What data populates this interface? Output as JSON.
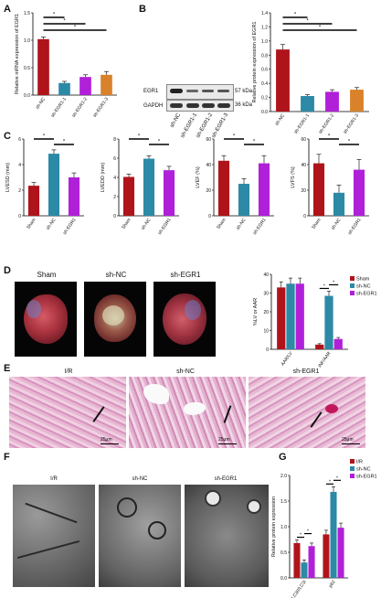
{
  "panels": {
    "A": {
      "label": "A"
    },
    "B": {
      "label": "B"
    },
    "C": {
      "label": "C"
    },
    "D": {
      "label": "D"
    },
    "E": {
      "label": "E"
    },
    "F": {
      "label": "F"
    },
    "G": {
      "label": "G"
    }
  },
  "colors": {
    "red": "#b0141b",
    "teal": "#2c8aa6",
    "purple": "#b020d8",
    "orange": "#d9822b",
    "green": "#2e9a3a",
    "pink": "#e07cc0"
  },
  "blot": {
    "rows": [
      {
        "name": "EGR1",
        "kda": "57 kDa"
      },
      {
        "name": "GAPDH",
        "kda": "36 kDa"
      }
    ],
    "lanes": [
      "sh-NC",
      "sh-EGR1-1",
      "sh-EGR1-2",
      "sh-EGR1-3"
    ]
  },
  "photos_D": [
    "Sham",
    "sh-NC",
    "sh-EGR1"
  ],
  "histo_E": {
    "captions": [
      "I/R",
      "sh-NC",
      "sh-EGR1"
    ],
    "scale": "25μm"
  },
  "tem_F": {
    "captions": [
      "I/R",
      "sh-NC",
      "sh-EGR1"
    ]
  },
  "chart_data": [
    {
      "id": "A",
      "type": "bar",
      "ylabel": "Relative mRNA expression of EGR1",
      "categories": [
        "sh-NC",
        "sh-EGR1-1",
        "sh-EGR1-2",
        "sh-EGR1-3"
      ],
      "values": [
        1.02,
        0.22,
        0.33,
        0.37
      ],
      "errors": [
        0.04,
        0.03,
        0.04,
        0.06
      ],
      "colors": [
        "#b0141b",
        "#2c8aa6",
        "#b020d8",
        "#d9822b"
      ],
      "ylim": [
        0,
        1.5
      ],
      "yticks": [
        0.0,
        0.5,
        1.0,
        1.5
      ],
      "tick_labels": [
        "0.0",
        "0.5",
        "1.0",
        "1.5"
      ],
      "sig": [
        "*",
        "*",
        "*"
      ]
    },
    {
      "id": "B",
      "type": "bar",
      "ylabel": "Relative protein expression of EGR1",
      "categories": [
        "sh-NC",
        "sh-EGR1-1",
        "sh-EGR1-2",
        "sh-EGR1-3"
      ],
      "values": [
        0.88,
        0.22,
        0.28,
        0.31
      ],
      "errors": [
        0.07,
        0.02,
        0.03,
        0.03
      ],
      "colors": [
        "#b0141b",
        "#2c8aa6",
        "#b020d8",
        "#d9822b"
      ],
      "ylim": [
        0,
        1.4
      ],
      "yticks": [
        0.0,
        0.2,
        0.4,
        0.6,
        0.8,
        1.0,
        1.2,
        1.4
      ],
      "tick_labels": [
        "0.0",
        "0.2",
        "0.4",
        "0.6",
        "0.8",
        "1.0",
        "1.2",
        "1.4"
      ],
      "sig": [
        "*",
        "*",
        "*"
      ]
    },
    {
      "id": "C1",
      "type": "bar",
      "ylabel": "LVESD (mm)",
      "categories": [
        "Sham",
        "sh-NC",
        "sh-EGR1"
      ],
      "values": [
        2.35,
        4.85,
        3.0
      ],
      "errors": [
        0.25,
        0.3,
        0.35
      ],
      "colors": [
        "#b0141b",
        "#2c8aa6",
        "#b020d8"
      ],
      "ylim": [
        0,
        6
      ],
      "yticks": [
        0,
        2,
        4,
        6
      ],
      "tick_labels": [
        "0",
        "2",
        "4",
        "6"
      ],
      "sig": [
        "*",
        "*"
      ]
    },
    {
      "id": "C2",
      "type": "bar",
      "ylabel": "LVEDD (mm)",
      "categories": [
        "Sham",
        "sh-NC",
        "sh-EGR1"
      ],
      "values": [
        4.05,
        5.95,
        4.75
      ],
      "errors": [
        0.3,
        0.3,
        0.4
      ],
      "colors": [
        "#b0141b",
        "#2c8aa6",
        "#b020d8"
      ],
      "ylim": [
        0,
        8
      ],
      "yticks": [
        0,
        2,
        4,
        6,
        8
      ],
      "tick_labels": [
        "0",
        "2",
        "4",
        "6",
        "8"
      ],
      "sig": [
        "*",
        "*"
      ]
    },
    {
      "id": "C3",
      "type": "bar",
      "ylabel": "LVEF (%)",
      "categories": [
        "Sham",
        "sh-NC",
        "sh-EGR1"
      ],
      "values": [
        43,
        25,
        41
      ],
      "errors": [
        4,
        4,
        6
      ],
      "colors": [
        "#b0141b",
        "#2c8aa6",
        "#b020d8"
      ],
      "ylim": [
        0,
        60
      ],
      "yticks": [
        0,
        20,
        40,
        60
      ],
      "tick_labels": [
        "0",
        "20",
        "40",
        "60"
      ],
      "sig": [
        "*",
        "*"
      ]
    },
    {
      "id": "C4",
      "type": "bar",
      "ylabel": "LVFS (%)",
      "categories": [
        "Sham",
        "sh-NC",
        "sh-EGR1"
      ],
      "values": [
        41,
        18,
        36
      ],
      "errors": [
        7,
        6,
        8
      ],
      "colors": [
        "#b0141b",
        "#2c8aa6",
        "#b020d8"
      ],
      "ylim": [
        0,
        60
      ],
      "yticks": [
        0,
        20,
        40,
        60
      ],
      "tick_labels": [
        "0",
        "20",
        "40",
        "60"
      ],
      "sig": [
        "*",
        "*"
      ]
    },
    {
      "id": "D",
      "type": "bar",
      "ylabel": "%LV or AAR",
      "categories": [
        "AAR/LV",
        "INF/AAR"
      ],
      "series": [
        {
          "name": "Sham",
          "values": [
            33,
            2.5
          ],
          "errors": [
            3,
            0.5
          ]
        },
        {
          "name": "sh-NC",
          "values": [
            35,
            28.5
          ],
          "errors": [
            3,
            2.5
          ]
        },
        {
          "name": "sh-EGR1",
          "values": [
            35,
            5.5
          ],
          "errors": [
            3,
            0.8
          ]
        }
      ],
      "colors": [
        "#b0141b",
        "#2c8aa6",
        "#b020d8"
      ],
      "ylim": [
        0,
        40
      ],
      "yticks": [
        0,
        10,
        20,
        30,
        40
      ],
      "tick_labels": [
        "0",
        "10",
        "20",
        "30",
        "40"
      ],
      "legend": "top-right",
      "sig": [
        "*",
        "*"
      ]
    },
    {
      "id": "G",
      "type": "bar",
      "ylabel": "Relative protein expression",
      "categories": [
        "LC3II/LC3I",
        "p62"
      ],
      "series": [
        {
          "name": "I/R",
          "values": [
            0.68,
            0.85
          ],
          "errors": [
            0.06,
            0.08
          ]
        },
        {
          "name": "sh-NC",
          "values": [
            0.3,
            1.68
          ],
          "errors": [
            0.05,
            0.1
          ]
        },
        {
          "name": "sh-EGR1",
          "values": [
            0.62,
            0.98
          ],
          "errors": [
            0.06,
            0.09
          ]
        }
      ],
      "colors": [
        "#b0141b",
        "#2c8aa6",
        "#b020d8"
      ],
      "ylim": [
        0,
        2.0
      ],
      "yticks": [
        0.0,
        0.5,
        1.0,
        1.5,
        2.0
      ],
      "tick_labels": [
        "0.0",
        "0.5",
        "1.0",
        "1.5",
        "2.0"
      ],
      "legend": "top-right",
      "sig": [
        "*",
        "*",
        "*",
        "*"
      ]
    }
  ]
}
